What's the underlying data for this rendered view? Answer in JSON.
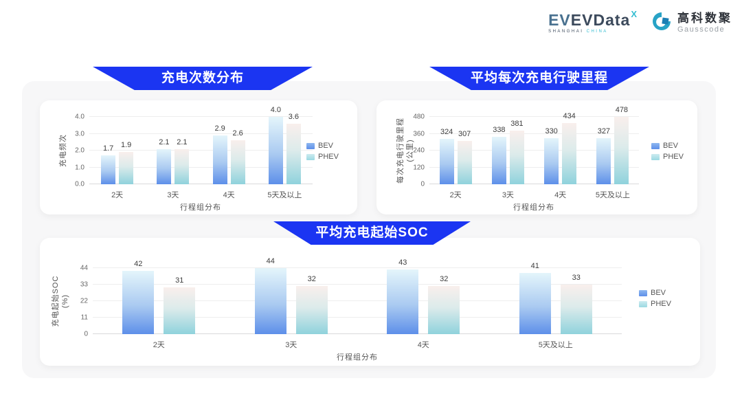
{
  "header": {
    "evdata_logo": {
      "text": "EVData",
      "sup": "X",
      "sub_left": "SHANGHAI",
      "sub_right": "CHINA"
    },
    "gausscode_logo": {
      "cn": "高科数聚",
      "en": "Gausscode"
    }
  },
  "colors": {
    "banner_blue": "#1b35f2",
    "bev_bar_bottom": "#5d8fe9",
    "bev_bar_top": "#e4f5fb",
    "phev_bar_bottom": "#8fd2dc",
    "phev_bar_top": "#f9efec",
    "panel_bg": "#f7f7f8",
    "card_bg": "#ffffff"
  },
  "chart_data": [
    {
      "type": "bar",
      "title": "充电次数分布",
      "y_label": "充电频次",
      "y_label2": "",
      "x_label": "行程组分布",
      "categories": [
        "2天",
        "3天",
        "4天",
        "5天及以上"
      ],
      "series": [
        {
          "name": "BEV",
          "values": [
            1.7,
            2.1,
            2.9,
            4.0
          ]
        },
        {
          "name": "PHEV",
          "values": [
            1.9,
            2.1,
            2.6,
            3.6
          ]
        }
      ],
      "ticks": [
        0,
        1,
        2,
        3,
        4
      ],
      "tick_labels": [
        "0.0",
        "1.0",
        "2.0",
        "3.0",
        "4.0"
      ],
      "ymax": 4,
      "decimals": 1,
      "legend_position": "right",
      "grid": true
    },
    {
      "type": "bar",
      "title": "平均每次充电行驶里程",
      "y_label": "每次充电行驶里程",
      "y_label2": "(公里)",
      "x_label": "行程组分布",
      "categories": [
        "2天",
        "3天",
        "4天",
        "5天及以上"
      ],
      "series": [
        {
          "name": "BEV",
          "values": [
            324,
            338,
            330,
            327
          ]
        },
        {
          "name": "PHEV",
          "values": [
            307,
            381,
            434,
            478
          ]
        }
      ],
      "ticks": [
        0,
        120,
        240,
        360,
        480
      ],
      "tick_labels": [
        "0",
        "120",
        "240",
        "360",
        "480"
      ],
      "ymax": 480,
      "decimals": 0,
      "legend_position": "right",
      "grid": true
    },
    {
      "type": "bar",
      "title": "平均充电起始SOC",
      "y_label": "充电起始SOC",
      "y_label2": "(%)",
      "x_label": "行程组分布",
      "categories": [
        "2天",
        "3天",
        "4天",
        "5天及以上"
      ],
      "series": [
        {
          "name": "BEV",
          "values": [
            42,
            44,
            43,
            41
          ]
        },
        {
          "name": "PHEV",
          "values": [
            31,
            32,
            32,
            33
          ]
        }
      ],
      "ticks": [
        0,
        11,
        22,
        33,
        44
      ],
      "tick_labels": [
        "0",
        "11",
        "22",
        "33",
        "44"
      ],
      "ymax": 44,
      "decimals": 0,
      "legend_position": "right",
      "grid": true
    }
  ]
}
